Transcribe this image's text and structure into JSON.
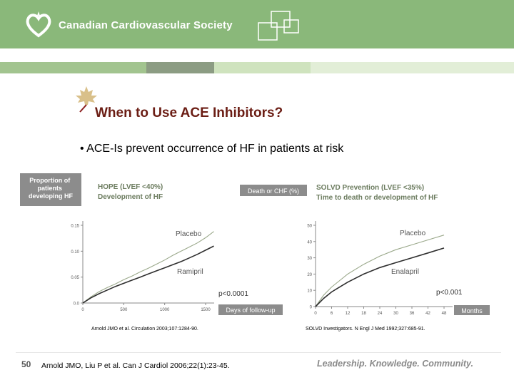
{
  "header": {
    "org_name": "Canadian Cardiovascular Society",
    "brand_color": "#8ab87a",
    "strip_colors": [
      "#a2c48f",
      "#8c9c83",
      "#cfe3be",
      "#e2eed7"
    ]
  },
  "slide": {
    "title": "When to Use ACE Inhibitors?",
    "bullet": "• ACE-Is prevent occurrence of HF in patients at risk",
    "title_color": "#6b1d14"
  },
  "chart_data": [
    {
      "type": "line",
      "title": "HOPE (LVEF <40%)",
      "subtitle": "Development of HF",
      "ylabel": "Proportion of patients developing HF",
      "xlabel": "Days of follow-up",
      "xlim": [
        0,
        1500
      ],
      "ylim": [
        0,
        0.15
      ],
      "xticks": [
        "0",
        "500",
        "1000",
        "1500"
      ],
      "yticks": [
        "0.0",
        "0.05",
        "0.10",
        "0.15"
      ],
      "series": [
        {
          "name": "Placebo",
          "color": "#9aa88a",
          "x": [
            0,
            100,
            200,
            300,
            400,
            500,
            600,
            700,
            800,
            900,
            1000,
            1100,
            1200,
            1300,
            1400,
            1500,
            1600
          ],
          "y": [
            0,
            0.012,
            0.022,
            0.03,
            0.037,
            0.045,
            0.052,
            0.06,
            0.067,
            0.075,
            0.083,
            0.092,
            0.1,
            0.108,
            0.116,
            0.126,
            0.138
          ]
        },
        {
          "name": "Ramipril",
          "color": "#2e2e2e",
          "x": [
            0,
            100,
            200,
            300,
            400,
            500,
            600,
            700,
            800,
            900,
            1000,
            1100,
            1200,
            1300,
            1400,
            1500,
            1600
          ],
          "y": [
            0,
            0.01,
            0.018,
            0.025,
            0.032,
            0.038,
            0.044,
            0.05,
            0.056,
            0.062,
            0.068,
            0.074,
            0.08,
            0.087,
            0.094,
            0.102,
            0.11
          ]
        }
      ],
      "pvalue": "p<0.0001",
      "citation": "Arnold JMO et al. Circulation 2003;107:1284-90."
    },
    {
      "type": "line",
      "title": "SOLVD Prevention (LVEF <35%)",
      "subtitle": "Time to death or development of HF",
      "ylabel": "Death or CHF (%)",
      "xlabel": "Months",
      "xlim": [
        0,
        48
      ],
      "ylim": [
        0,
        50
      ],
      "xticks": [
        "0",
        "6",
        "12",
        "18",
        "24",
        "30",
        "36",
        "42",
        "48"
      ],
      "yticks": [
        "0",
        "10",
        "20",
        "30",
        "40",
        "50"
      ],
      "series": [
        {
          "name": "Placebo",
          "color": "#9aa88a",
          "x": [
            0,
            3,
            6,
            9,
            12,
            18,
            24,
            30,
            36,
            42,
            48
          ],
          "y": [
            0,
            7,
            12,
            16,
            20,
            26,
            31,
            35,
            38,
            41,
            44
          ]
        },
        {
          "name": "Enalapril",
          "color": "#2e2e2e",
          "x": [
            0,
            3,
            6,
            9,
            12,
            18,
            24,
            30,
            36,
            42,
            48
          ],
          "y": [
            0,
            5,
            9,
            12,
            15,
            20,
            24,
            27,
            30,
            33,
            36
          ]
        }
      ],
      "pvalue": "p<0.001",
      "citation": "SOLVD Investigators. N Engl J Med 1992;327:685-91."
    }
  ],
  "footer": {
    "page_number": "50",
    "reference": "Arnold JMO, Liu P et al. Can J Cardiol 2006;22(1):23-45.",
    "tagline": "Leadership. Knowledge. Community."
  }
}
